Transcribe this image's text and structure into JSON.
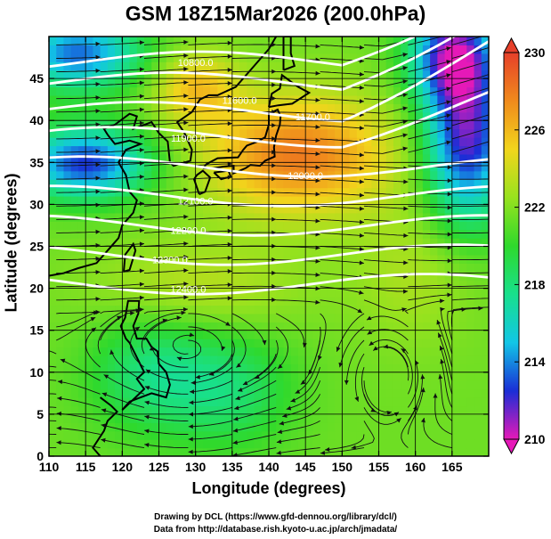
{
  "title": "GSM 18Z15Mar2026 (200.0hPa)",
  "xlabel": "Longitude (degrees)",
  "ylabel": "Latitude  (degrees)",
  "credits": [
    "Drawing by DCL (https://www.gfd-dennou.org/library/dcl/)",
    "Data from http://database.rish.kyoto-u.ac.jp/arch/jmadata/"
  ],
  "chart_data": {
    "type": "heatmap",
    "subtype": "temperature shading with geopotential height contours and wind streamlines",
    "x_range": [
      110,
      170
    ],
    "y_range": [
      0,
      50
    ],
    "x_ticks": [
      110,
      115,
      120,
      125,
      130,
      135,
      140,
      145,
      150,
      155,
      160,
      165
    ],
    "y_ticks": [
      0,
      5,
      10,
      15,
      20,
      25,
      30,
      35,
      40,
      45
    ],
    "colorbar": {
      "range": [
        210,
        230
      ],
      "ticks": [
        210,
        214,
        218,
        222,
        226,
        230
      ],
      "colors": [
        "#e619b8",
        "#1a2ed6",
        "#12c6e6",
        "#18e08c",
        "#2fd92c",
        "#98e21e",
        "#f2d51c",
        "#f08a1c",
        "#e6402a"
      ]
    },
    "contour_labels": [
      {
        "text": "10800.0",
        "lon": 130,
        "lat": 46.5
      },
      {
        "text": "11600.0",
        "lon": 136,
        "lat": 42
      },
      {
        "text": "11700.0",
        "lon": 146,
        "lat": 40
      },
      {
        "text": "12000.0",
        "lon": 145,
        "lat": 33
      },
      {
        "text": "11900.0",
        "lon": 129,
        "lat": 37.5
      },
      {
        "text": "12100.0",
        "lon": 130,
        "lat": 30
      },
      {
        "text": "12200.0",
        "lon": 129,
        "lat": 26.5
      },
      {
        "text": "12300.0",
        "lon": 126.5,
        "lat": 23
      },
      {
        "text": "12400.0",
        "lon": 129,
        "lat": 19.5
      }
    ],
    "grid": true,
    "grid_color": "#000000"
  }
}
